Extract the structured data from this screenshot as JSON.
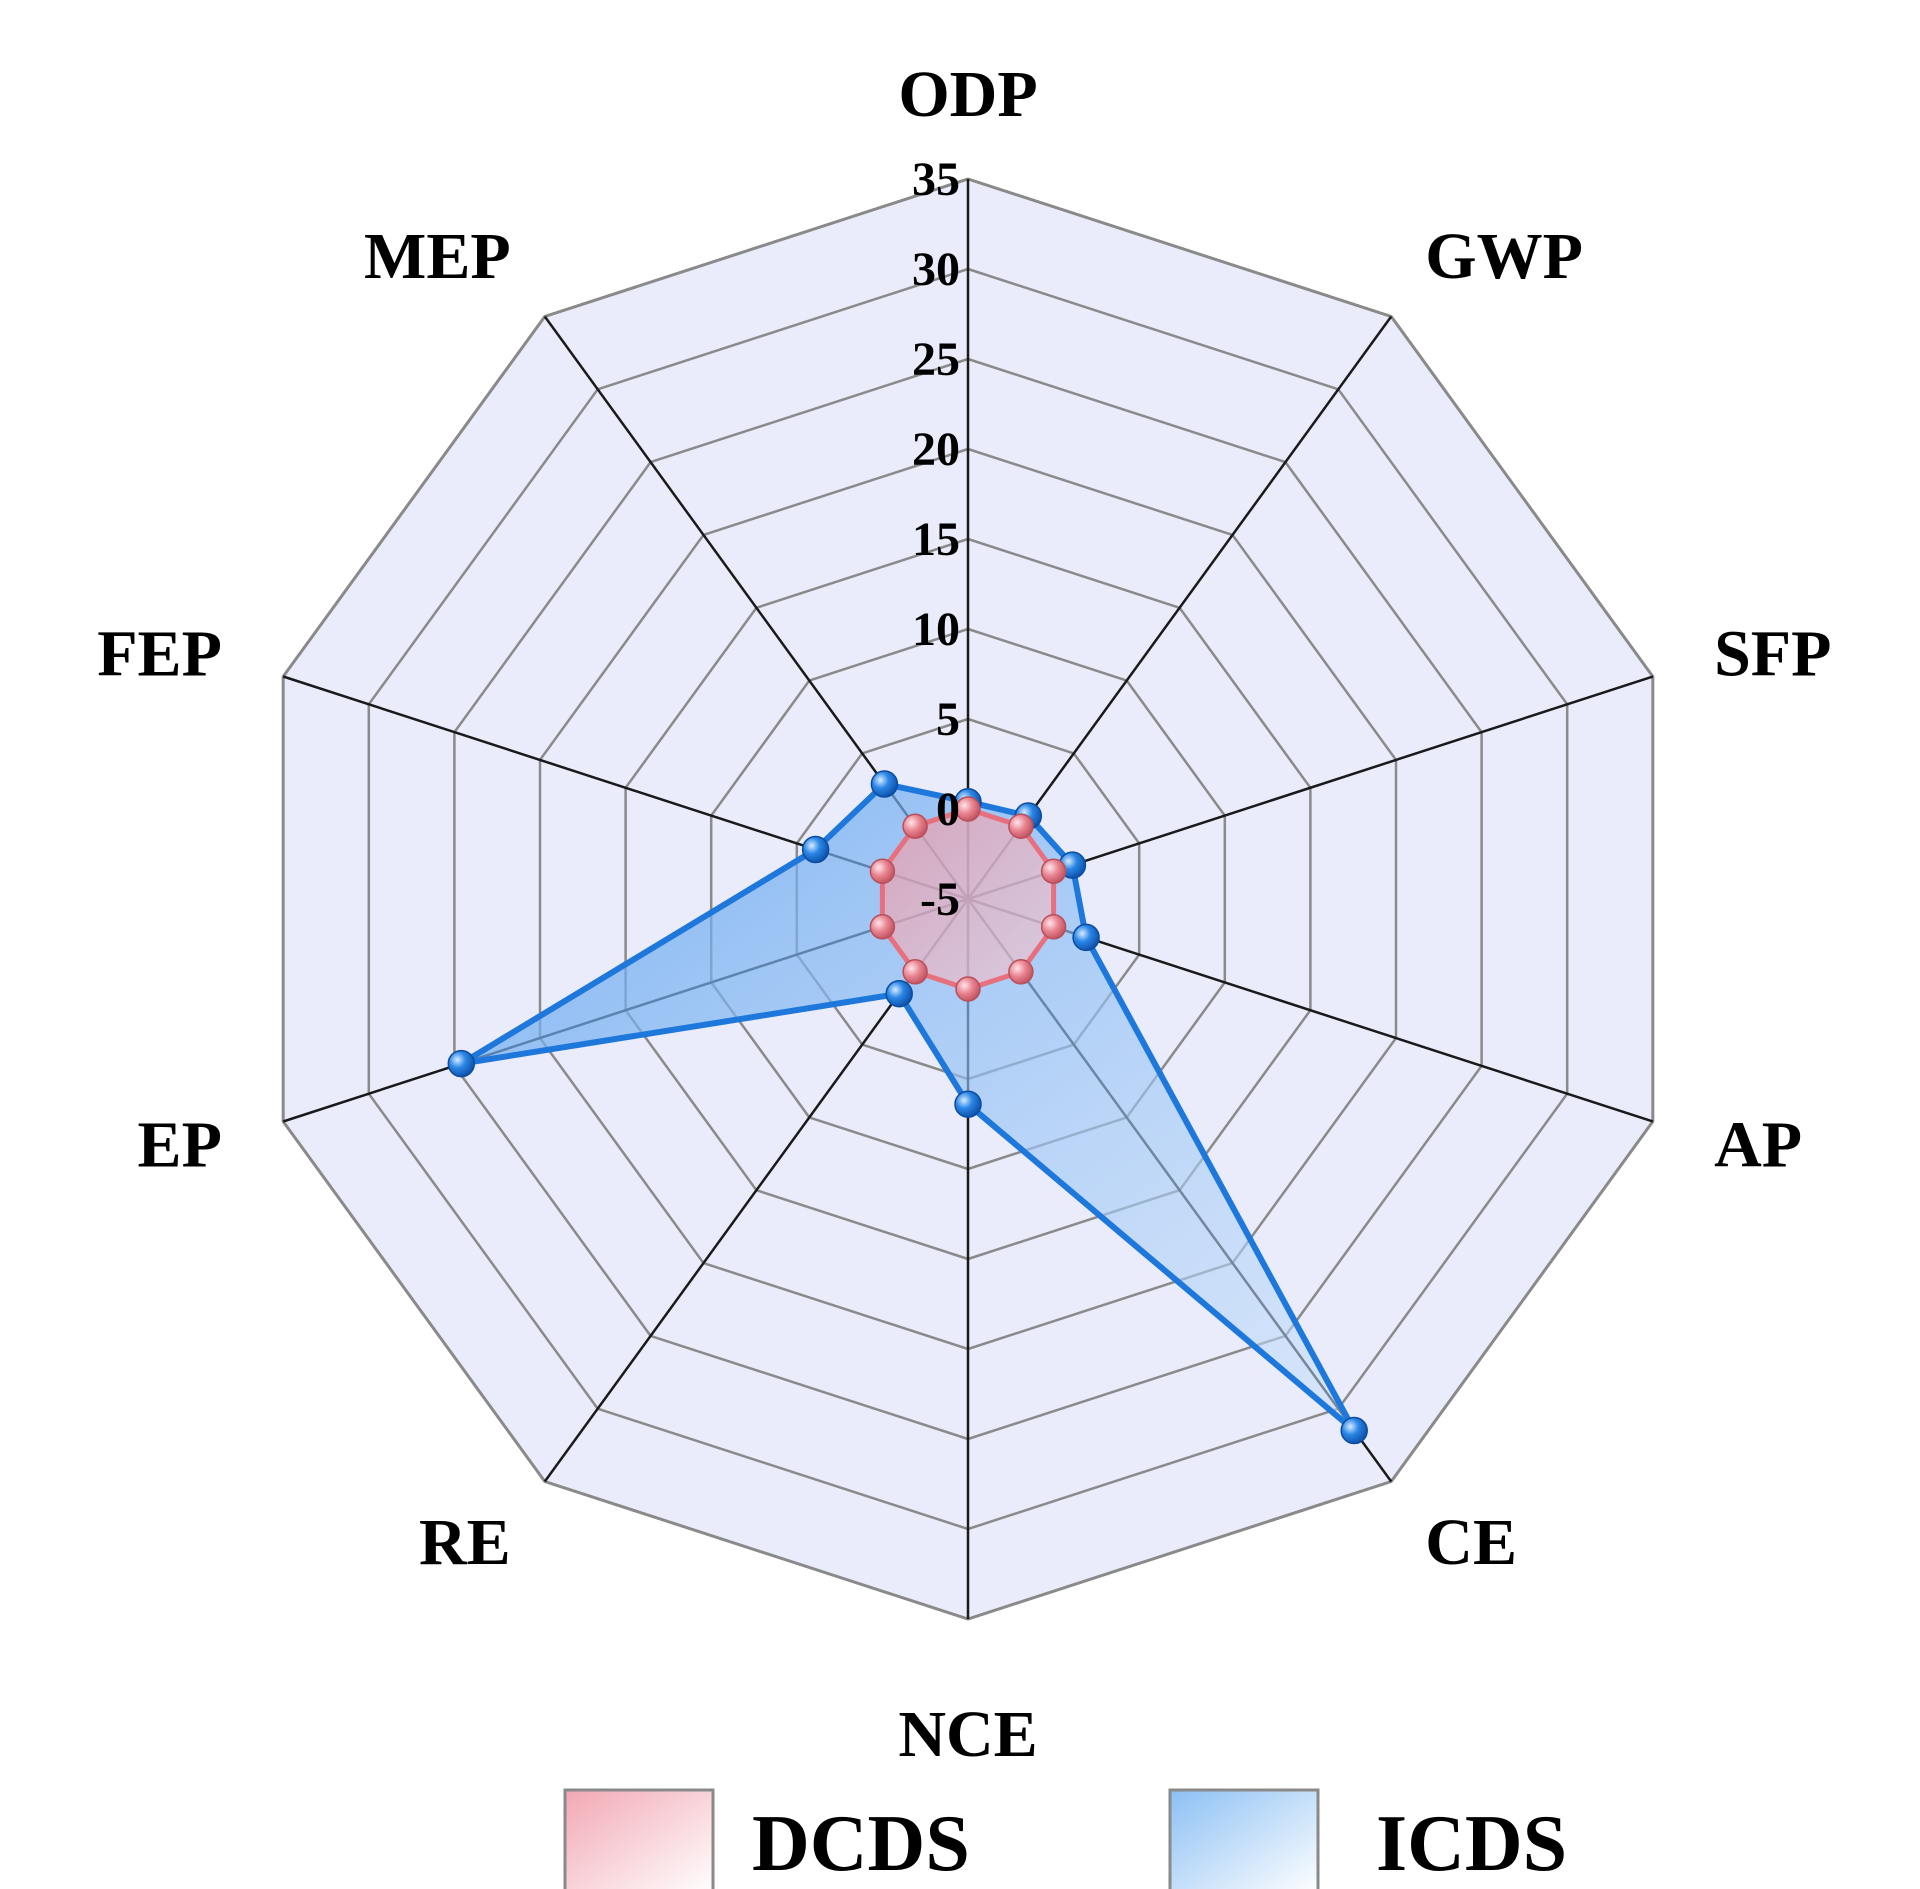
{
  "chart_data": {
    "type": "radar",
    "axes": [
      "ODP",
      "GWP",
      "SFP",
      "AP",
      "CE",
      "NCE",
      "RE",
      "EP",
      "FEP",
      "MEP"
    ],
    "scale": {
      "min": -5,
      "max": 35,
      "step": 5
    },
    "tick_labels": [
      "-5",
      "0",
      "5",
      "10",
      "15",
      "20",
      "25",
      "30",
      "35"
    ],
    "series": [
      {
        "name": "DCDS",
        "color": "#e8707e",
        "values": [
          0,
          0,
          0,
          0,
          0,
          0,
          0,
          0,
          0,
          0
        ]
      },
      {
        "name": "ICDS",
        "color": "#1e78dc",
        "values": [
          0.4,
          0.7,
          1.1,
          1.9,
          31.5,
          6.4,
          1.5,
          24.6,
          3.9,
          2.9
        ]
      }
    ],
    "legend": {
      "position": "bottom",
      "entries": [
        "DCDS",
        "ICDS"
      ]
    },
    "grid": true
  }
}
